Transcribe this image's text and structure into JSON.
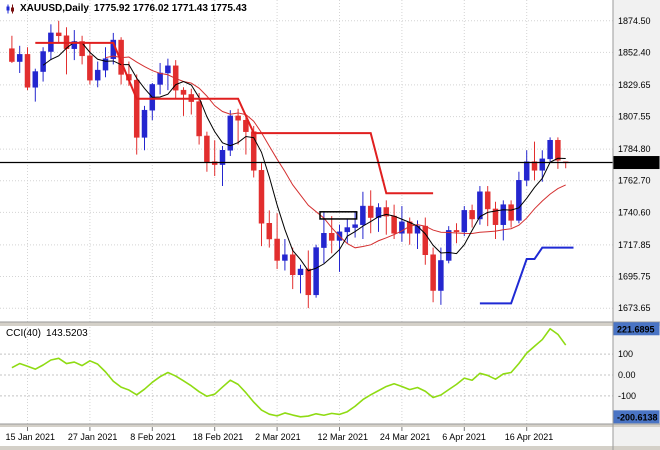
{
  "header": {
    "symbol": "XAUUSD,Daily",
    "ohlc": "1775.92 1776.02 1771.43 1775.43"
  },
  "indicator_header": {
    "name": "CCI(40)",
    "value": "143.5203"
  },
  "colors": {
    "background": "#ffffff",
    "grid": "#d4d4d4",
    "bull": "#2426cf",
    "bear": "#e22e2e",
    "ma_fast": "#000000",
    "ma_slow": "#d43030",
    "resistance": "#e01f1f",
    "support": "#1f2ad4",
    "price_line": "#000000",
    "cci": "#8fdb13",
    "level": "#c4c4c4",
    "scale_bg": "#f1f1f1",
    "divider": "#d4d0c8",
    "price_box_bg": "#000000",
    "indicator_box_bg": "#4a74c4",
    "box_text": "#ffffff"
  },
  "price_axis": {
    "ticks": [
      "1874.50",
      "1852.40",
      "1829.65",
      "1807.55",
      "1784.80",
      "1762.70",
      "1740.60",
      "1717.85",
      "1695.75",
      "1673.65"
    ],
    "current_price": "1775.43"
  },
  "time_axis": [
    {
      "bar": 2,
      "label": "15 Jan 2021"
    },
    {
      "bar": 10,
      "label": "27 Jan 2021"
    },
    {
      "bar": 18,
      "label": "8 Feb 2021"
    },
    {
      "bar": 26,
      "label": "18 Feb 2021"
    },
    {
      "bar": 34,
      "label": "2 Mar 2021"
    },
    {
      "bar": 42,
      "label": "12 Mar 2021"
    },
    {
      "bar": 50,
      "label": "24 Mar 2021"
    },
    {
      "bar": 58,
      "label": "6 Apr 2021"
    },
    {
      "bar": 66,
      "label": "16 Apr 2021"
    }
  ],
  "chart_data": {
    "type": "candlestick",
    "symbol": "XAUUSD",
    "timeframe": "Daily",
    "price_range": {
      "min": 1664,
      "max": 1889
    },
    "candles": [
      [
        1855,
        1864,
        1845,
        1846
      ],
      [
        1846,
        1857,
        1838,
        1851
      ],
      [
        1851,
        1856,
        1826,
        1828
      ],
      [
        1828,
        1841,
        1818,
        1839
      ],
      [
        1839,
        1856,
        1832,
        1853
      ],
      [
        1853,
        1872,
        1847,
        1866
      ],
      [
        1866,
        1874.5,
        1859,
        1864
      ],
      [
        1864,
        1870,
        1837,
        1855
      ],
      [
        1855,
        1868,
        1847,
        1860
      ],
      [
        1860,
        1864,
        1844,
        1850
      ],
      [
        1850,
        1859,
        1830,
        1833
      ],
      [
        1833,
        1846,
        1828,
        1840
      ],
      [
        1840,
        1856,
        1835,
        1848
      ],
      [
        1848,
        1866,
        1844,
        1861
      ],
      [
        1861,
        1863,
        1830,
        1837
      ],
      [
        1837,
        1846,
        1829,
        1833
      ],
      [
        1833,
        1837,
        1781,
        1793
      ],
      [
        1793,
        1815,
        1784,
        1812
      ],
      [
        1812,
        1831,
        1805,
        1830
      ],
      [
        1830,
        1845,
        1823,
        1838
      ],
      [
        1838,
        1848,
        1826,
        1843
      ],
      [
        1843,
        1847,
        1820,
        1826
      ],
      [
        1826,
        1828,
        1808,
        1823
      ],
      [
        1823,
        1827,
        1809,
        1818
      ],
      [
        1818,
        1824,
        1788,
        1794
      ],
      [
        1794,
        1797,
        1769,
        1776
      ],
      [
        1776,
        1791,
        1766,
        1774
      ],
      [
        1774,
        1787,
        1759,
        1784
      ],
      [
        1784,
        1812,
        1780,
        1808
      ],
      [
        1808,
        1813,
        1788,
        1805
      ],
      [
        1805,
        1807,
        1781,
        1797
      ],
      [
        1797,
        1801,
        1765,
        1770
      ],
      [
        1770,
        1775,
        1717,
        1733
      ],
      [
        1733,
        1742,
        1716,
        1722
      ],
      [
        1722,
        1740,
        1701,
        1707
      ],
      [
        1707,
        1722,
        1700,
        1711
      ],
      [
        1711,
        1716,
        1687,
        1697
      ],
      [
        1697,
        1704,
        1684,
        1701
      ],
      [
        1701,
        1714,
        1673.7,
        1683
      ],
      [
        1683,
        1718,
        1681,
        1716
      ],
      [
        1716,
        1741,
        1705,
        1726
      ],
      [
        1726,
        1738,
        1712,
        1721
      ],
      [
        1721,
        1732,
        1699,
        1727
      ],
      [
        1727,
        1736,
        1719,
        1730
      ],
      [
        1730,
        1741,
        1723,
        1732
      ],
      [
        1732,
        1755,
        1722,
        1745
      ],
      [
        1745,
        1756,
        1726,
        1737
      ],
      [
        1737,
        1747,
        1727,
        1744
      ],
      [
        1744,
        1749,
        1725,
        1738
      ],
      [
        1738,
        1746,
        1722,
        1726
      ],
      [
        1726,
        1745,
        1720,
        1734
      ],
      [
        1734,
        1737,
        1718,
        1726
      ],
      [
        1726,
        1735,
        1715,
        1731
      ],
      [
        1731,
        1737,
        1704,
        1711
      ],
      [
        1711,
        1716,
        1677.8,
        1686
      ],
      [
        1686,
        1716,
        1676,
        1707
      ],
      [
        1707,
        1731,
        1705,
        1728
      ],
      [
        1728,
        1733,
        1719,
        1727
      ],
      [
        1727,
        1745,
        1724,
        1742
      ],
      [
        1742,
        1746,
        1730,
        1736
      ],
      [
        1736,
        1759,
        1732,
        1755
      ],
      [
        1755,
        1759,
        1731,
        1743
      ],
      [
        1743,
        1748,
        1722,
        1732
      ],
      [
        1732,
        1749,
        1721,
        1746
      ],
      [
        1746,
        1749,
        1730,
        1735
      ],
      [
        1735,
        1769,
        1733,
        1763
      ],
      [
        1763,
        1784,
        1759,
        1776
      ],
      [
        1776,
        1790,
        1763,
        1770
      ],
      [
        1770,
        1784,
        1762,
        1778
      ],
      [
        1778,
        1793,
        1776,
        1791
      ],
      [
        1791,
        1793,
        1771,
        1777
      ],
      [
        1775.92,
        1776.02,
        1771.43,
        1775.43
      ]
    ],
    "overlays": {
      "ma_fast_period": 5,
      "ma_slow_period": 13,
      "resistance_steps": [
        [
          3,
          1859
        ],
        [
          13,
          1859
        ],
        [
          16,
          1820
        ],
        [
          29,
          1820
        ],
        [
          31,
          1796
        ],
        [
          46,
          1796
        ],
        [
          48,
          1754
        ],
        [
          54,
          1754
        ]
      ],
      "support_steps": [
        [
          60,
          1677
        ],
        [
          64,
          1677
        ],
        [
          66,
          1708
        ],
        [
          67,
          1708
        ],
        [
          68,
          1716
        ],
        [
          72,
          1716
        ]
      ],
      "price_line": 1775.43,
      "rect_annotation": {
        "bar_from": 39.5,
        "bar_to": 44.2,
        "price_top": 1741,
        "price_bottom": 1736
      }
    },
    "indicator": {
      "type": "line",
      "name": "CCI",
      "period": 40,
      "current": "143.5203",
      "range": {
        "min": -235,
        "max": 235
      },
      "levels": [
        {
          "value": 100,
          "label": "100"
        },
        {
          "value": 0,
          "label": "0.00"
        },
        {
          "value": -100,
          "label": "-100"
        }
      ],
      "max_box": "221.6895",
      "min_box": "-200.6138",
      "values": [
        35,
        55,
        42,
        28,
        48,
        72,
        80,
        55,
        62,
        45,
        68,
        52,
        15,
        -30,
        -58,
        -72,
        -95,
        -68,
        -35,
        -8,
        12,
        -5,
        -28,
        -52,
        -80,
        -102,
        -92,
        -58,
        -25,
        -45,
        -85,
        -130,
        -168,
        -188,
        -196,
        -182,
        -192,
        -200.6138,
        -197,
        -186,
        -193,
        -184,
        -189,
        -176,
        -150,
        -118,
        -95,
        -75,
        -55,
        -42,
        -55,
        -70,
        -60,
        -78,
        -108,
        -96,
        -70,
        -45,
        -15,
        -25,
        8,
        -2,
        -20,
        5,
        12,
        55,
        105,
        138,
        170,
        221.6895,
        195,
        143.5203
      ]
    }
  }
}
